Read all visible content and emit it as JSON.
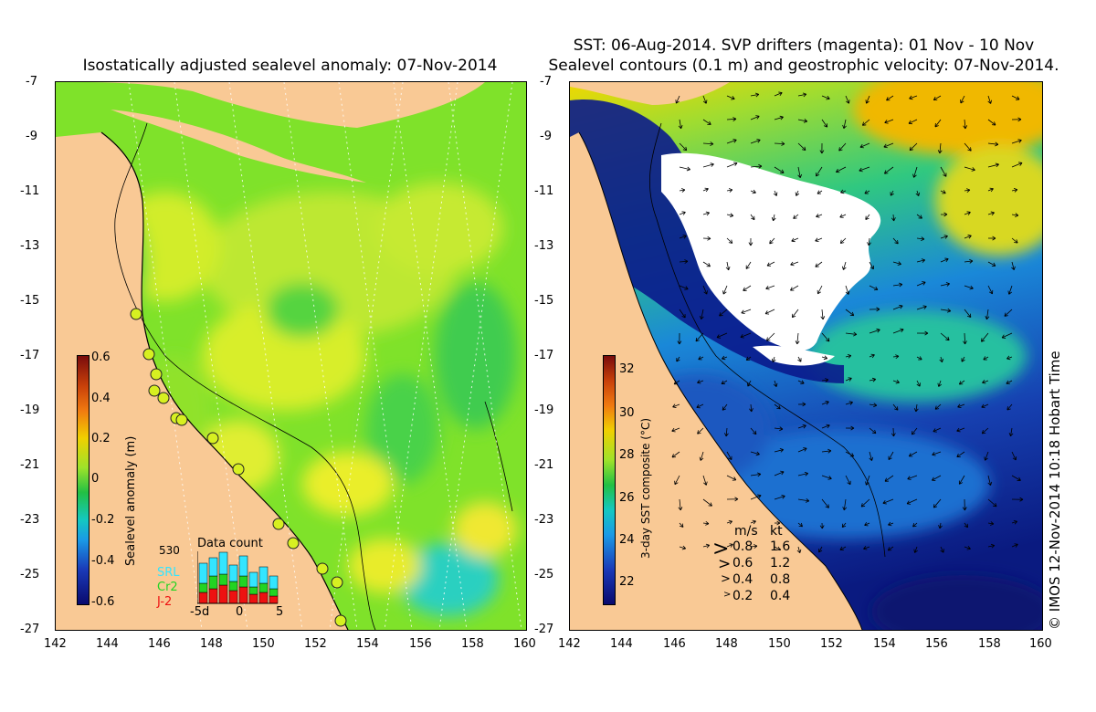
{
  "left_map": {
    "title": "Isostatically adjusted sealevel anomaly: 07-Nov-2014",
    "colorbar": {
      "label": "Sealevel anomaly (m)",
      "ticks": [
        "0.6",
        "0.4",
        "0.2",
        "0",
        "-0.2",
        "-0.4",
        "-0.6"
      ]
    },
    "data_count": {
      "title": "Data count",
      "max_label": "530",
      "legend": [
        "SRL",
        "Cr2",
        "J-2"
      ],
      "legend_colors": [
        "#33e5ff",
        "#22d422",
        "#ee1111"
      ],
      "x_ticks": [
        "-5d",
        "0",
        "5"
      ]
    }
  },
  "right_map": {
    "title_line1": "SST: 06-Aug-2014. SVP drifters (magenta): 01 Nov - 10 Nov",
    "title_line2": "Sealevel contours (0.1 m) and geostrophic velocity: 07-Nov-2014.",
    "colorbar": {
      "label": "3-day SST composite (°C)",
      "ticks": [
        "32",
        "30",
        "28",
        "26",
        "24",
        "22"
      ]
    },
    "velocity_legend": {
      "headers": [
        "m/s",
        "kt"
      ],
      "rows": [
        [
          "0.8",
          "1.6"
        ],
        [
          "0.6",
          "1.2"
        ],
        [
          "0.4",
          "0.8"
        ],
        [
          "0.2",
          "0.4"
        ]
      ]
    }
  },
  "axes": {
    "lat_ticks": [
      "-7",
      "-9",
      "-11",
      "-13",
      "-15",
      "-17",
      "-19",
      "-21",
      "-23",
      "-25",
      "-27"
    ],
    "lon_ticks": [
      "142",
      "144",
      "146",
      "148",
      "150",
      "152",
      "154",
      "156",
      "158",
      "160"
    ]
  },
  "credit": "© IMOS 12-Nov-2014 10:18 Hobart Time",
  "colors": {
    "land": "#f9c995",
    "sla_base": "#7fe22a",
    "sst_cloud": "#ffffff",
    "sst_warm": "#f0d800",
    "sst_cold": "#0a1e8c"
  }
}
